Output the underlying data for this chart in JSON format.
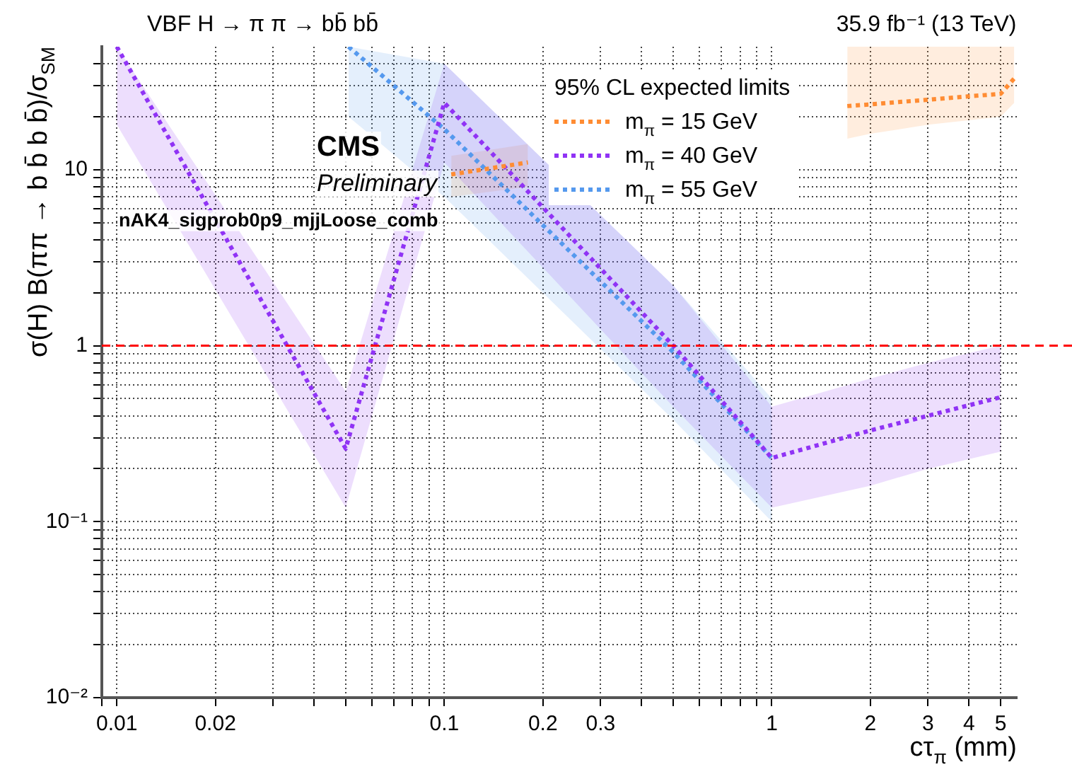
{
  "chart_data": {
    "type": "line",
    "title": "VBF H → π π → bb̄ bb̄",
    "xlabel": "cτ$_{π}$ (mm)",
    "ylabel": "σ(H) B(ππ → b b̄ b b̄)/σ$_{SM}$",
    "legend_title": "95% CL expected limits",
    "legend": "top right",
    "annotations": [
      "35.9 fb⁻¹ (13 TeV)",
      "CMS",
      "Preliminary",
      "nAK4_sigprob0p9_mjjLoose_comb"
    ],
    "log": "xy",
    "grid": true,
    "marker": "none",
    "line_style": "dotted",
    "xlim": [
      0.009,
      5.6
    ],
    "ylim": [
      0.01,
      50
    ],
    "xticks": [
      {
        "value": 0.009,
        "label": null
      },
      0.01,
      0.02,
      {
        "value": 0.03,
        "label": null
      },
      {
        "value": 0.04,
        "label": null
      },
      {
        "value": 0.05,
        "label": null
      },
      {
        "value": 0.06,
        "label": null
      },
      {
        "value": 0.07,
        "label": null
      },
      {
        "value": 0.08,
        "label": null
      },
      {
        "value": 0.09,
        "label": null
      },
      0.1,
      0.2,
      0.3,
      {
        "value": 0.4,
        "label": null
      },
      {
        "value": 0.5,
        "label": null
      },
      {
        "value": 0.6,
        "label": null
      },
      {
        "value": 0.7,
        "label": null
      },
      {
        "value": 0.8,
        "label": null
      },
      {
        "value": 0.9,
        "label": null
      },
      1,
      2,
      3,
      4,
      5
    ],
    "yticks": [
      {
        "value": 0.01,
        "label": "10⁻²"
      },
      {
        "value": 0.02,
        "label": null
      },
      {
        "value": 0.03,
        "label": null
      },
      {
        "value": 0.04,
        "label": null
      },
      {
        "value": 0.05,
        "label": null
      },
      {
        "value": 0.06,
        "label": null
      },
      {
        "value": 0.07,
        "label": null
      },
      {
        "value": 0.08,
        "label": null
      },
      {
        "value": 0.09,
        "label": null
      },
      {
        "value": 0.1,
        "label": "10⁻¹"
      },
      {
        "value": 0.2,
        "label": null
      },
      {
        "value": 0.3,
        "label": null
      },
      {
        "value": 0.4,
        "label": null
      },
      {
        "value": 0.5,
        "label": null
      },
      {
        "value": 0.6,
        "label": null
      },
      {
        "value": 0.7,
        "label": null
      },
      {
        "value": 0.8,
        "label": null
      },
      {
        "value": 0.9,
        "label": null
      },
      1,
      {
        "value": 2,
        "label": null
      },
      {
        "value": 3,
        "label": null
      },
      {
        "value": 4,
        "label": null
      },
      {
        "value": 5,
        "label": null
      },
      {
        "value": 6,
        "label": null
      },
      {
        "value": 7,
        "label": null
      },
      {
        "value": 8,
        "label": null
      },
      {
        "value": 9,
        "label": null
      },
      10,
      {
        "value": 20,
        "label": null
      },
      {
        "value": 30,
        "label": null
      },
      {
        "value": 40,
        "label": null
      }
    ],
    "ref_lines": [
      {
        "axis": "y",
        "value": 1,
        "color": "#ff0000",
        "line_style": "dashed"
      }
    ],
    "series": [
      {
        "name": "m$_{π}$ = 15 GeV",
        "color": "#ff8c33",
        "x": [
          0.105,
          0.18,
          0.5,
          1.7,
          2,
          3,
          5,
          5.5
        ],
        "values": [
          9.4,
          11,
          null,
          23,
          23.5,
          25,
          27,
          33
        ],
        "lower": [
          7,
          8,
          null,
          15,
          16,
          18,
          20,
          24
        ],
        "upper": [
          12,
          14,
          null,
          50,
          50,
          50,
          50,
          50
        ]
      },
      {
        "name": "m$_{π}$ = 40 GeV",
        "color": "#9033f5",
        "x": [
          0.01,
          0.05,
          0.1,
          0.5,
          1,
          2,
          3,
          5
        ],
        "values": [
          50,
          0.26,
          24,
          1.0,
          0.23,
          0.33,
          0.4,
          0.51
        ],
        "lower": [
          18,
          0.12,
          11,
          0.45,
          0.12,
          0.16,
          0.2,
          0.25
        ],
        "upper": [
          50,
          0.55,
          40,
          2.2,
          0.45,
          0.65,
          0.8,
          1.0
        ]
      },
      {
        "name": "m$_{π}$ = 55 GeV",
        "color": "#5599ee",
        "x": [
          0.051,
          0.1,
          0.5,
          1
        ],
        "values": [
          50,
          17,
          0.92,
          0.23
        ],
        "lower": [
          20,
          7,
          0.38,
          0.1
        ],
        "upper": [
          50,
          40,
          2.2,
          0.5
        ]
      }
    ]
  }
}
